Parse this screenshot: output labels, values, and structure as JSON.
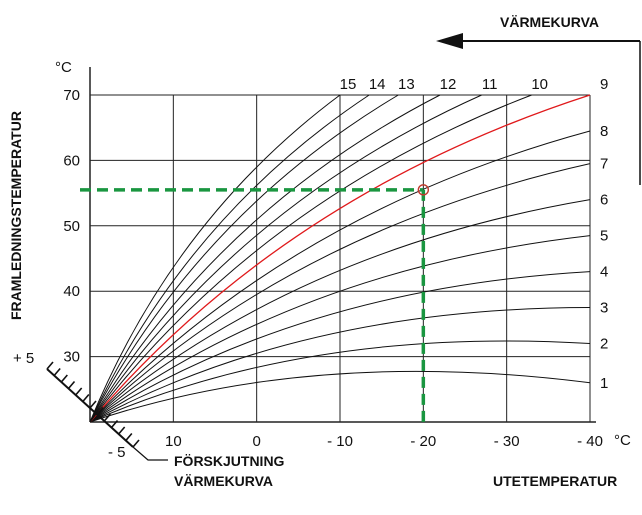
{
  "chart_data": {
    "type": "line",
    "title": "",
    "curve_family_label": "VÄRMEKURVA",
    "ylabel": "FRAMLEDNINGSTEMPERATUR",
    "y_unit": "°C",
    "xlabel": "UTETEMPERATUR",
    "x_unit": "°C",
    "shift_label_line1": "FÖRSKJUTNING",
    "shift_label_line2": "VÄRMEKURVA",
    "shift_plus": "+ 5",
    "shift_minus": "- 5",
    "x_ticks": [
      "10",
      "0",
      "- 10",
      "- 20",
      "- 30",
      "- 40"
    ],
    "y_ticks": [
      "30",
      "40",
      "50",
      "60",
      "70"
    ],
    "xlim": [
      20,
      -40
    ],
    "ylim": [
      20,
      70
    ],
    "curve_origin": {
      "x": 20,
      "y": 20
    },
    "series": [
      {
        "name": "1",
        "endpoint": {
          "x": -40,
          "y": 26
        }
      },
      {
        "name": "2",
        "endpoint": {
          "x": -40,
          "y": 32
        }
      },
      {
        "name": "3",
        "endpoint": {
          "x": -40,
          "y": 37.5
        }
      },
      {
        "name": "4",
        "endpoint": {
          "x": -40,
          "y": 43
        }
      },
      {
        "name": "5",
        "endpoint": {
          "x": -40,
          "y": 48.5
        }
      },
      {
        "name": "6",
        "endpoint": {
          "x": -40,
          "y": 54
        }
      },
      {
        "name": "7",
        "endpoint": {
          "x": -40,
          "y": 59.5
        }
      },
      {
        "name": "8",
        "endpoint": {
          "x": -40,
          "y": 64.5
        }
      },
      {
        "name": "9",
        "endpoint": {
          "x": -40,
          "y": 70
        },
        "highlight": true
      },
      {
        "name": "10",
        "endpoint": {
          "x": -33,
          "y": 70
        }
      },
      {
        "name": "11",
        "endpoint": {
          "x": -27,
          "y": 70
        }
      },
      {
        "name": "12",
        "endpoint": {
          "x": -22,
          "y": 70
        }
      },
      {
        "name": "13",
        "endpoint": {
          "x": -17,
          "y": 70
        }
      },
      {
        "name": "14",
        "endpoint": {
          "x": -13.5,
          "y": 70
        }
      },
      {
        "name": "15",
        "endpoint": {
          "x": -10,
          "y": 70
        }
      }
    ],
    "example_point": {
      "x": -20,
      "y": 55.5
    },
    "colors": {
      "grid": "#222222",
      "curve": "#111111",
      "highlight": "#e0191b",
      "example": "#1a9640"
    }
  }
}
